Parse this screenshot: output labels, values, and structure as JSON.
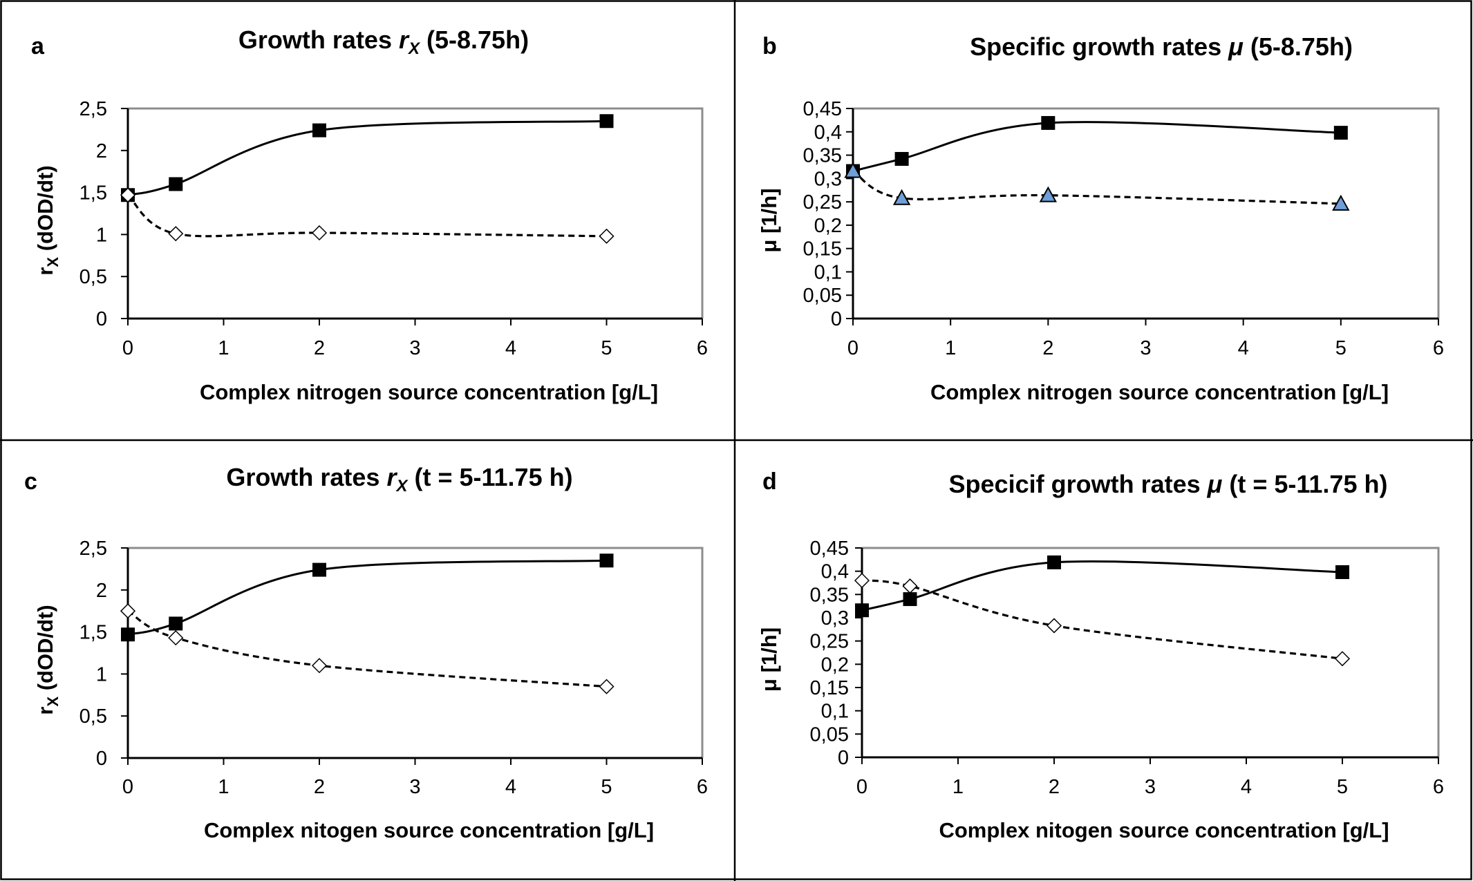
{
  "figure": {
    "frame_color": "#000000",
    "plot_border_color": "#8c8c8c",
    "triangle_fill": "#6f9fd8"
  },
  "chart_data": [
    {
      "id": "a",
      "type": "line",
      "panel_letter": "a",
      "title": {
        "pre": "Growth rates ",
        "italic": "r",
        "sub": "X",
        "post": " (5-8.75h)"
      },
      "xlabel": "Complex nitrogen source concentration [g/L]",
      "ylabel": {
        "main": "r",
        "sub": "X",
        "post": " (dOD/dt)"
      },
      "xlim": [
        0,
        6
      ],
      "ylim": [
        0,
        2.5
      ],
      "xticks": [
        0,
        1,
        2,
        3,
        4,
        5,
        6
      ],
      "xtick_labels": [
        "0",
        "1",
        "2",
        "3",
        "4",
        "5",
        "6"
      ],
      "yticks": [
        0,
        0.5,
        1,
        1.5,
        2,
        2.5
      ],
      "ytick_labels": [
        "0",
        "0,5",
        "1",
        "1,5",
        "2",
        "2,5"
      ],
      "grid": false,
      "legend": "none",
      "series": [
        {
          "name": "filled-squares",
          "marker": "square",
          "line": "solid",
          "x": [
            0,
            0.5,
            2,
            5
          ],
          "y": [
            1.47,
            1.6,
            2.24,
            2.35
          ]
        },
        {
          "name": "open-diamonds",
          "marker": "diamond-open",
          "line": "dashed",
          "x": [
            0,
            0.5,
            2,
            5
          ],
          "y": [
            1.47,
            1.01,
            1.02,
            0.98
          ]
        }
      ]
    },
    {
      "id": "b",
      "type": "line",
      "panel_letter": "b",
      "title": {
        "pre": "Specific growth rates ",
        "italic": "μ",
        "sub": "",
        "post": " (5-8.75h)"
      },
      "xlabel": "Complex nitrogen source concentration [g/L]",
      "ylabel": {
        "main": "μ [1/h]",
        "sub": "",
        "post": ""
      },
      "xlim": [
        0,
        6
      ],
      "ylim": [
        0,
        0.45
      ],
      "xticks": [
        0,
        1,
        2,
        3,
        4,
        5,
        6
      ],
      "xtick_labels": [
        "0",
        "1",
        "2",
        "3",
        "4",
        "5",
        "6"
      ],
      "yticks": [
        0,
        0.05,
        0.1,
        0.15,
        0.2,
        0.25,
        0.3,
        0.35,
        0.4,
        0.45
      ],
      "ytick_labels": [
        "0",
        "0,05",
        "0,1",
        "0,15",
        "0,2",
        "0,25",
        "0,3",
        "0,35",
        "0,4",
        "0,45"
      ],
      "grid": false,
      "legend": "none",
      "series": [
        {
          "name": "filled-squares",
          "marker": "square",
          "line": "solid",
          "x": [
            0,
            0.5,
            2,
            5
          ],
          "y": [
            0.316,
            0.342,
            0.419,
            0.398
          ]
        },
        {
          "name": "blue-triangles",
          "marker": "triangle",
          "line": "dashed",
          "x": [
            0,
            0.5,
            2,
            5
          ],
          "y": [
            0.316,
            0.258,
            0.264,
            0.246
          ]
        }
      ]
    },
    {
      "id": "c",
      "type": "line",
      "panel_letter": "c",
      "title": {
        "pre": "Growth rates ",
        "italic": "r",
        "sub": "X",
        "post": " (t = 5-11.75 h)"
      },
      "xlabel": "Complex nitogen source concentration [g/L]",
      "ylabel": {
        "main": "r",
        "sub": "X",
        "post": " (dOD/dt)"
      },
      "xlim": [
        0,
        6
      ],
      "ylim": [
        0,
        2.5
      ],
      "xticks": [
        0,
        1,
        2,
        3,
        4,
        5,
        6
      ],
      "xtick_labels": [
        "0",
        "1",
        "2",
        "3",
        "4",
        "5",
        "6"
      ],
      "yticks": [
        0,
        0.5,
        1,
        1.5,
        2,
        2.5
      ],
      "ytick_labels": [
        "0",
        "0,5",
        "1",
        "1,5",
        "2",
        "2,5"
      ],
      "grid": false,
      "legend": "none",
      "series": [
        {
          "name": "filled-squares",
          "marker": "square",
          "line": "solid",
          "x": [
            0,
            0.5,
            2,
            5
          ],
          "y": [
            1.47,
            1.6,
            2.24,
            2.35
          ]
        },
        {
          "name": "open-diamonds",
          "marker": "diamond-open",
          "line": "dashed",
          "x": [
            0,
            0.5,
            2,
            5
          ],
          "y": [
            1.75,
            1.43,
            1.1,
            0.85
          ]
        }
      ]
    },
    {
      "id": "d",
      "type": "line",
      "panel_letter": "d",
      "title": {
        "pre": "Specicif growth rates ",
        "italic": "μ",
        "sub": "",
        "post": " (t = 5-11.75 h)"
      },
      "xlabel": "Complex nitogen source concentration [g/L]",
      "ylabel": {
        "main": "μ [1/h]",
        "sub": "",
        "post": ""
      },
      "xlim": [
        0,
        6
      ],
      "ylim": [
        0,
        0.45
      ],
      "xticks": [
        0,
        1,
        2,
        3,
        4,
        5,
        6
      ],
      "xtick_labels": [
        "0",
        "1",
        "2",
        "3",
        "4",
        "5",
        "6"
      ],
      "yticks": [
        0,
        0.05,
        0.1,
        0.15,
        0.2,
        0.25,
        0.3,
        0.35,
        0.4,
        0.45
      ],
      "ytick_labels": [
        "0",
        "0,05",
        "0,1",
        "0,15",
        "0,2",
        "0,25",
        "0,3",
        "0,35",
        "0,4",
        "0,45"
      ],
      "grid": false,
      "legend": "none",
      "series": [
        {
          "name": "filled-squares",
          "marker": "square",
          "line": "solid",
          "x": [
            0,
            0.5,
            2,
            5
          ],
          "y": [
            0.316,
            0.34,
            0.419,
            0.398
          ]
        },
        {
          "name": "open-diamonds",
          "marker": "diamond-open",
          "line": "dashed",
          "x": [
            0,
            0.5,
            2,
            5
          ],
          "y": [
            0.38,
            0.368,
            0.283,
            0.212
          ]
        }
      ]
    }
  ]
}
